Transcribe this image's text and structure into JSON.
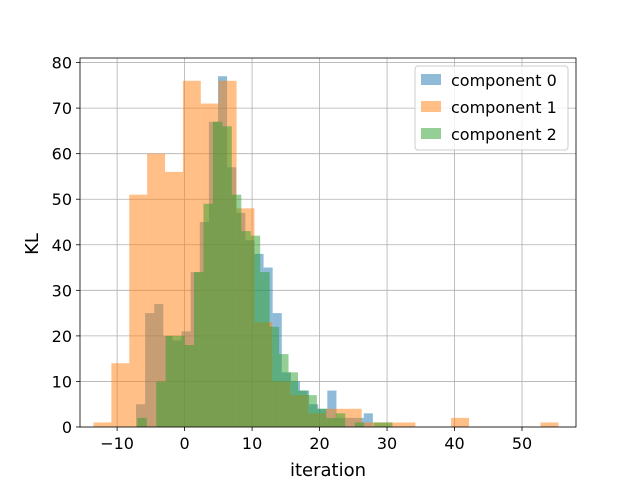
{
  "chart_data": {
    "type": "bar",
    "xlabel": "iteration",
    "ylabel": "KL",
    "xlim": [
      -15.5,
      58.0
    ],
    "ylim": [
      0,
      81
    ],
    "xticks": [
      -10,
      0,
      10,
      20,
      30,
      40,
      50
    ],
    "yticks": [
      0,
      10,
      20,
      30,
      40,
      50,
      60,
      70,
      80
    ],
    "grid": true,
    "legend_position": "top-right",
    "series": [
      {
        "name": "component 0",
        "color": "#1f77b4",
        "opacity": 0.5,
        "bin_width": 1.35,
        "bins": [
          [
            -7.2,
            5
          ],
          [
            -5.85,
            25
          ],
          [
            -4.5,
            27
          ],
          [
            -3.15,
            20
          ],
          [
            -1.8,
            19
          ],
          [
            -0.45,
            21
          ],
          [
            0.9,
            34
          ],
          [
            2.25,
            45
          ],
          [
            3.6,
            67
          ],
          [
            4.95,
            77
          ],
          [
            6.3,
            57
          ],
          [
            7.65,
            47
          ],
          [
            9.0,
            41
          ],
          [
            10.35,
            38
          ],
          [
            11.7,
            35
          ],
          [
            13.05,
            25
          ],
          [
            14.4,
            12
          ],
          [
            15.75,
            10
          ],
          [
            17.1,
            8
          ],
          [
            18.45,
            5
          ],
          [
            19.8,
            4
          ],
          [
            21.15,
            8
          ],
          [
            22.5,
            2
          ],
          [
            23.85,
            2
          ],
          [
            25.2,
            2
          ],
          [
            26.55,
            3
          ]
        ]
      },
      {
        "name": "component 1",
        "color": "#ff7f0e",
        "opacity": 0.5,
        "bin_width": 2.65,
        "bins": [
          [
            -13.5,
            1
          ],
          [
            -10.85,
            14
          ],
          [
            -8.2,
            51
          ],
          [
            -5.55,
            60
          ],
          [
            -2.9,
            56
          ],
          [
            -0.25,
            76
          ],
          [
            2.4,
            71
          ],
          [
            5.05,
            76
          ],
          [
            7.7,
            48
          ],
          [
            10.35,
            23
          ],
          [
            13.0,
            10
          ],
          [
            15.65,
            7
          ],
          [
            18.3,
            3
          ],
          [
            20.95,
            4
          ],
          [
            23.6,
            4
          ],
          [
            26.25,
            1
          ],
          [
            28.9,
            1
          ],
          [
            31.55,
            1
          ],
          [
            39.5,
            2
          ],
          [
            52.75,
            1
          ]
        ]
      },
      {
        "name": "component 2",
        "color": "#2ca02c",
        "opacity": 0.5,
        "bin_width": 1.4,
        "bins": [
          [
            -7.0,
            2
          ],
          [
            -4.2,
            10
          ],
          [
            -2.8,
            20
          ],
          [
            -1.4,
            20
          ],
          [
            0.0,
            18
          ],
          [
            1.4,
            34
          ],
          [
            2.8,
            49
          ],
          [
            4.2,
            67
          ],
          [
            5.6,
            66
          ],
          [
            7.0,
            51
          ],
          [
            8.4,
            43
          ],
          [
            9.8,
            42
          ],
          [
            11.2,
            34
          ],
          [
            12.6,
            22
          ],
          [
            14.0,
            16
          ],
          [
            15.4,
            12
          ],
          [
            16.8,
            8
          ],
          [
            18.2,
            7
          ],
          [
            19.6,
            4
          ],
          [
            21.0,
            2
          ],
          [
            22.4,
            3
          ],
          [
            25.2,
            1
          ],
          [
            28.0,
            1
          ],
          [
            29.4,
            1
          ]
        ]
      }
    ]
  }
}
